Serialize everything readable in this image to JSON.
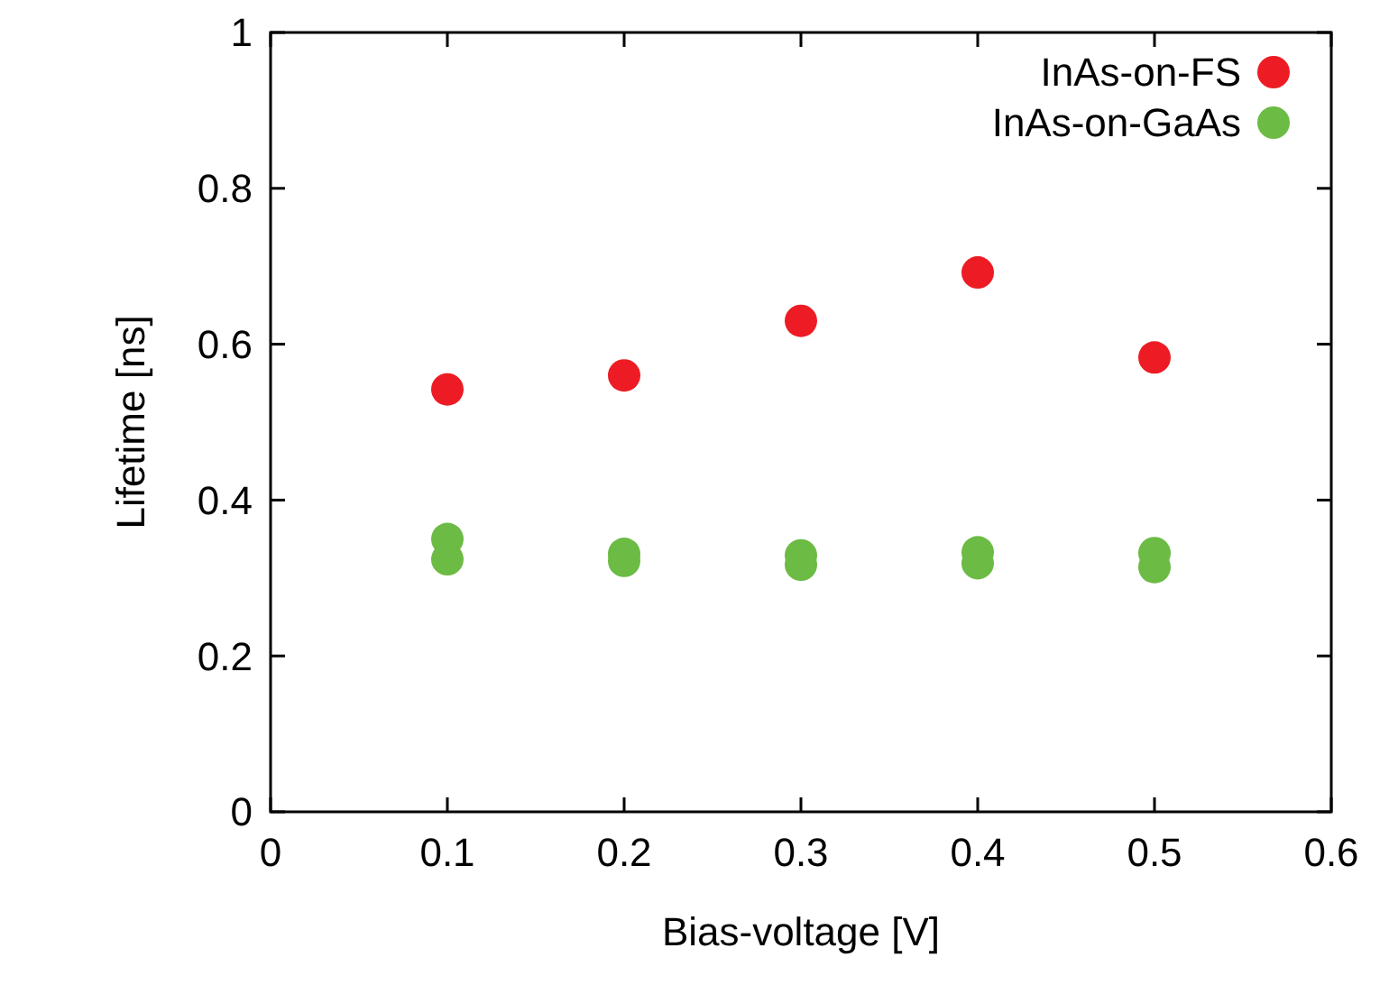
{
  "chart_data": {
    "type": "scatter",
    "xlabel": "Bias-voltage [V]",
    "ylabel": "Lifetime [ns]",
    "xlim": [
      0,
      0.6
    ],
    "xticks": [
      0,
      0.1,
      0.2,
      0.3,
      0.4,
      0.5,
      0.6
    ],
    "ylim": [
      0,
      1
    ],
    "yticks": [
      0,
      0.2,
      0.4,
      0.6,
      0.8,
      1
    ],
    "grid": false,
    "legend": "top right",
    "marker": "circle",
    "series": [
      {
        "name": "InAs-on-FS",
        "color": "#ed1c24",
        "x": [
          0.1,
          0.2,
          0.3,
          0.4,
          0.5
        ],
        "values": [
          0.542,
          0.56,
          0.63,
          0.692,
          0.583
        ]
      },
      {
        "name": "InAs-on-GaAs",
        "color": "#6bbb44",
        "x": [
          0.1,
          0.1,
          0.2,
          0.2,
          0.3,
          0.3,
          0.4,
          0.4,
          0.5,
          0.5
        ],
        "values": [
          0.35,
          0.324,
          0.331,
          0.322,
          0.329,
          0.317,
          0.333,
          0.319,
          0.332,
          0.314
        ]
      }
    ]
  }
}
